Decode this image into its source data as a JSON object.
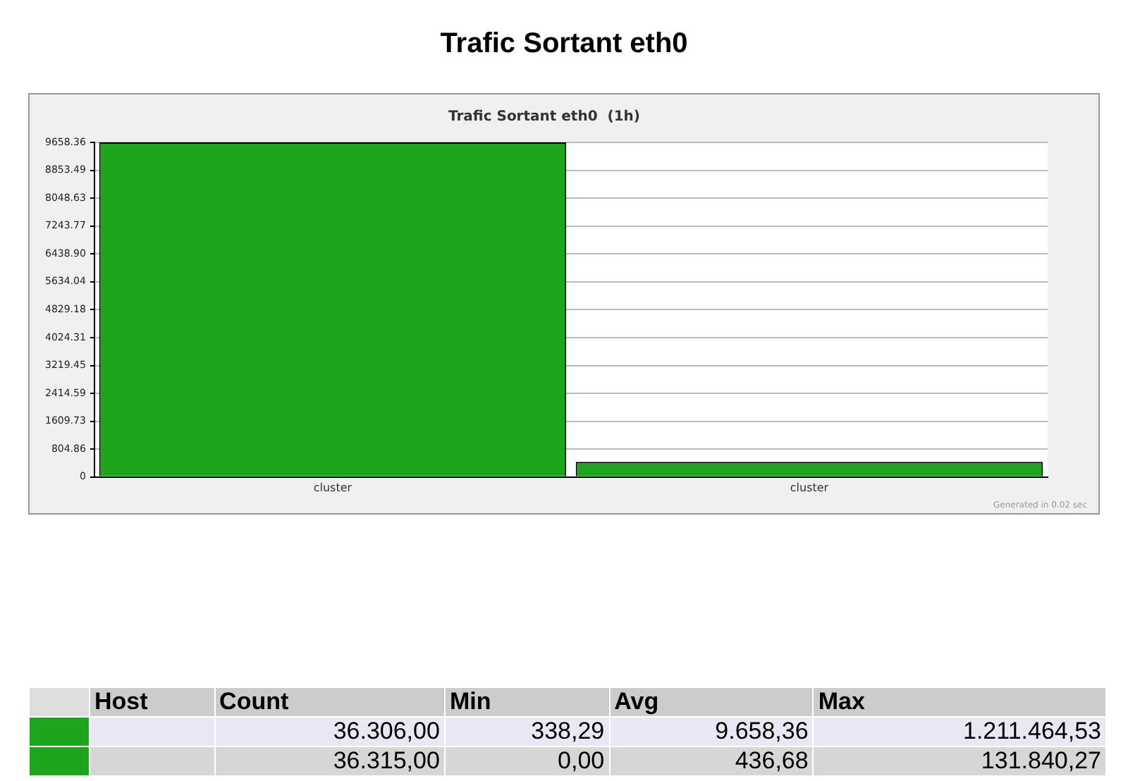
{
  "chart_data": {
    "type": "bar",
    "title": "Trafic Sortant eth0",
    "subtitle": "Trafic Sortant eth0  (1h)",
    "categories": [
      "cluster",
      "cluster"
    ],
    "values": [
      9658.36,
      436.68
    ],
    "colors": [
      "#1ea51e",
      "#1ea51e"
    ],
    "ylim": [
      0,
      9658.36
    ],
    "yticks": [
      0,
      804.86,
      1609.73,
      2414.59,
      3219.45,
      4024.31,
      4829.18,
      5634.04,
      {
        "value": 6438.9,
        "label": "6438.90"
      },
      7243.77,
      8048.63,
      8853.49,
      9658.36
    ],
    "grid": "y",
    "annotations": [
      "Host",
      "Count",
      "Min",
      "Avg",
      "Max",
      "36.306,00",
      "338,29",
      "9.658,36",
      "1.211.464,53",
      "36.315,00",
      "0,00",
      "436,68",
      "131.840,27",
      "Generated in 0.02 sec"
    ]
  }
}
